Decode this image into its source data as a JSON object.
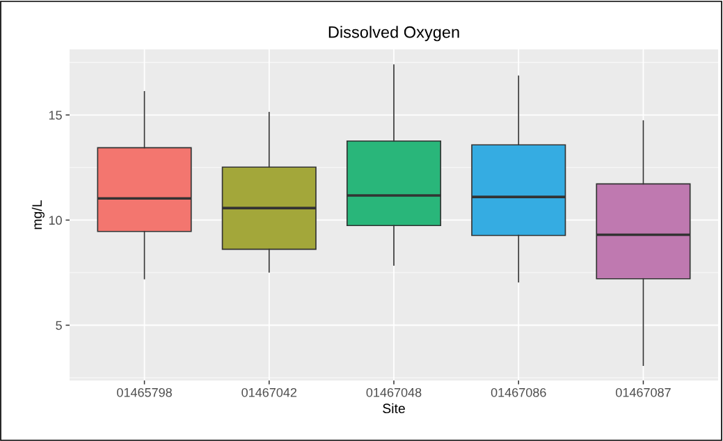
{
  "chart_data": {
    "type": "box",
    "title": "Dissolved Oxygen",
    "xlabel": "Site",
    "ylabel": "mg/L",
    "categories": [
      "01465798",
      "01467042",
      "01467048",
      "01467086",
      "01467087"
    ],
    "colors": [
      "#f3766f",
      "#a3a73a",
      "#29b67a",
      "#35ace2",
      "#bf79b0"
    ],
    "boxes": [
      {
        "low": 7.21,
        "q1": 9.46,
        "median": 11.03,
        "q3": 13.44,
        "high": 16.11
      },
      {
        "low": 7.53,
        "q1": 8.61,
        "median": 10.57,
        "q3": 12.52,
        "high": 15.12
      },
      {
        "low": 7.86,
        "q1": 9.74,
        "median": 11.17,
        "q3": 13.76,
        "high": 17.38
      },
      {
        "low": 7.06,
        "q1": 9.27,
        "median": 11.1,
        "q3": 13.58,
        "high": 16.85
      },
      {
        "low": 3.09,
        "q1": 7.21,
        "median": 9.3,
        "q3": 11.72,
        "high": 14.72
      }
    ],
    "ylim": [
      2.37,
      18.12
    ],
    "yticks": [
      5,
      10,
      15
    ],
    "grid": true,
    "legend": false
  }
}
